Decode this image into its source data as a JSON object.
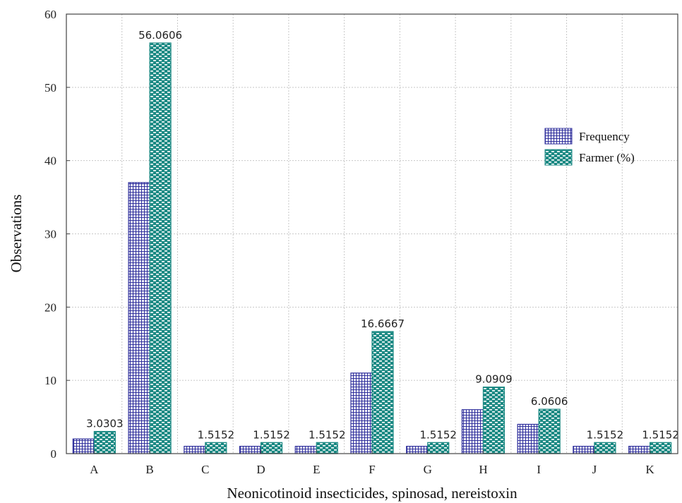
{
  "chart_data": {
    "type": "bar",
    "categories": [
      "A",
      "B",
      "C",
      "D",
      "E",
      "F",
      "G",
      "H",
      "I",
      "J",
      "K"
    ],
    "series": [
      {
        "name": "Frequency",
        "values": [
          2,
          37,
          1,
          1,
          1,
          11,
          1,
          6,
          4,
          1,
          1
        ],
        "color": "#2f2f9c"
      },
      {
        "name": "Farmer (%)",
        "values": [
          3.0303,
          56.0606,
          1.5152,
          1.5152,
          1.5152,
          16.6667,
          1.5152,
          9.0909,
          6.0606,
          1.5152,
          1.5152
        ],
        "color": "#1d8a84"
      }
    ],
    "data_labels": [
      "3.0303",
      "56.0606",
      "1.5152",
      "1.5152",
      "1.5152",
      "16.6667",
      "1.5152",
      "9.0909",
      "6.0606",
      "1.5152",
      "1.5152"
    ],
    "xlabel": "Neonicotinoid insecticides, spinosad, nereistoxin",
    "ylabel": "Observations",
    "ylim": [
      0,
      60
    ],
    "yticks": [
      0,
      10,
      20,
      30,
      40,
      50,
      60
    ],
    "grid": true,
    "legend_position": "right"
  }
}
